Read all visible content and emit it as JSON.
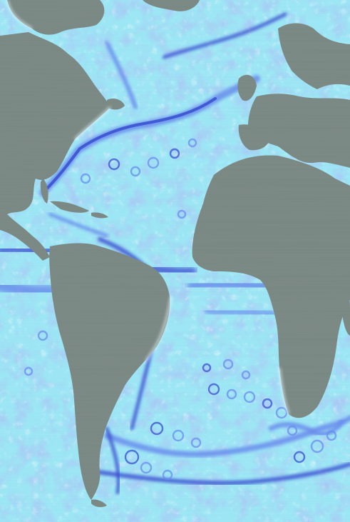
{
  "map": {
    "kind": "ocean surface current speed visualization",
    "region": "Atlantic Ocean",
    "colors": {
      "land": "#7d8b87",
      "ocean_slow": "#d8fbff",
      "ocean_mid": "#9fe9f8",
      "ocean_fast": "#6b8ff0",
      "current_core": "#3a4fd4",
      "eddy_light": "#c9f7ff",
      "highlight": "#f2fdff"
    }
  }
}
